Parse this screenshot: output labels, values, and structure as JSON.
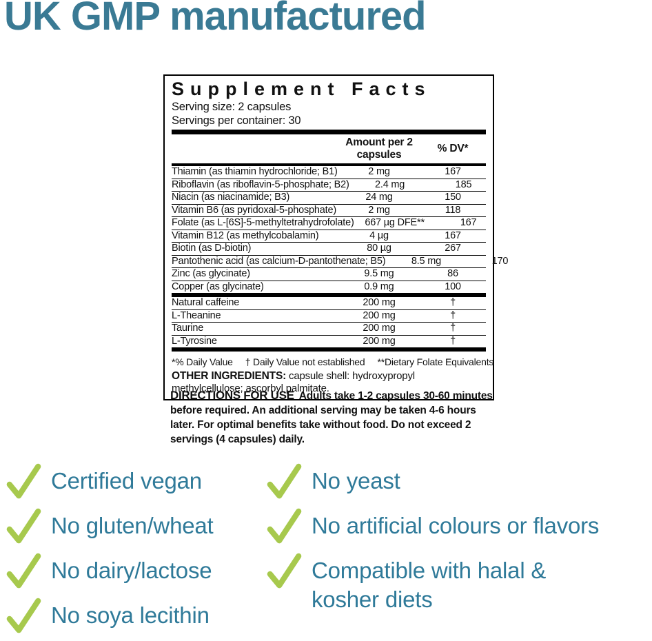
{
  "title": "UK GMP manufactured",
  "colors": {
    "accent_teal": "#3a7a94",
    "checklist_text_teal": "#2f7a99",
    "check_green": "#a7c94d",
    "panel_ink": "#111111"
  },
  "panel": {
    "title": "Supplement Facts",
    "serving_size": "Serving size: 2 capsules",
    "servings_per_container": "Servings per container: 30",
    "columns": {
      "amount": "Amount per 2 capsules",
      "dv": "% DV*"
    },
    "main_rows": [
      {
        "name": "Thiamin (as thiamin hydrochloride; B1)",
        "amount": "2 mg",
        "dv": "167"
      },
      {
        "name": "Riboflavin (as riboflavin-5-phosphate; B2)",
        "amount": "2.4 mg",
        "dv": "185"
      },
      {
        "name": "Niacin (as niacinamide; B3)",
        "amount": "24 mg",
        "dv": "150"
      },
      {
        "name": "Vitamin B6 (as pyridoxal-5-phosphate)",
        "amount": "2 mg",
        "dv": "118"
      },
      {
        "name": "Folate (as L-[6S]-5-methyltetrahydrofolate)",
        "amount": "667 µg DFE**",
        "dv": "167"
      },
      {
        "name": "Vitamin B12 (as methylcobalamin)",
        "amount": "4 µg",
        "dv": "167"
      },
      {
        "name": "Biotin (as D-biotin)",
        "amount": "80 µg",
        "dv": "267"
      },
      {
        "name": "Pantothenic acid (as calcium-D-pantothenate; B5)",
        "amount": "8.5 mg",
        "dv": "170"
      },
      {
        "name": "Zinc (as glycinate)",
        "amount": "9.5 mg",
        "dv": "86"
      },
      {
        "name": "Copper (as glycinate)",
        "amount": "0.9 mg",
        "dv": "100"
      }
    ],
    "extra_rows": [
      {
        "name": "Natural caffeine",
        "amount": "200 mg",
        "dv": "†"
      },
      {
        "name": "L-Theanine",
        "amount": "200 mg",
        "dv": "†"
      },
      {
        "name": "Taurine",
        "amount": "200 mg",
        "dv": "†"
      },
      {
        "name": "L-Tyrosine",
        "amount": "200 mg",
        "dv": "†"
      }
    ],
    "footnotes": [
      "*% Daily Value",
      "† Daily Value not established",
      "**Dietary Folate Equivalents"
    ],
    "other_ingredients": {
      "label": "OTHER INGREDIENTS:",
      "text": "capsule shell: hydroxypropyl methylcellulose; ascorbyl palmitate."
    }
  },
  "directions": {
    "label": "DIRECTIONS FOR USE",
    "text": "Adults take 1-2 capsules 30-60 minutes before required. An additional serving may be taken 4-6 hours later. For optimal benefits take without food. Do not exceed 2 servings (4 capsules) daily."
  },
  "checklist": {
    "left": [
      "Certified vegan",
      "No gluten/wheat",
      "No dairy/lactose",
      "No soya lecithin"
    ],
    "right": [
      "No yeast",
      "No artificial colours or flavors",
      "Compatible with halal &\nkosher diets"
    ]
  }
}
